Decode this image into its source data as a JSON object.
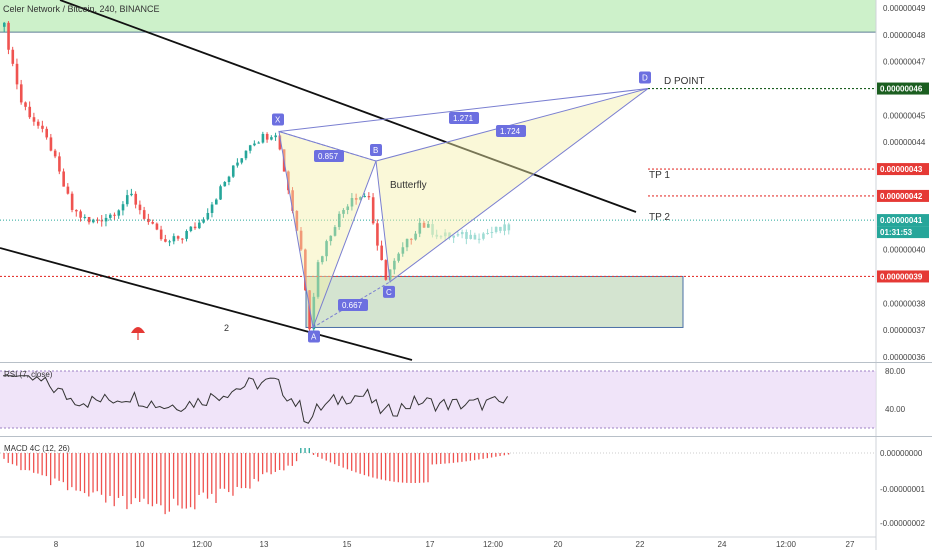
{
  "header": {
    "title": "Celer Network / Bitcoin, 240, BINANCE"
  },
  "chart_data": {
    "type": "candlestick",
    "symbol": "Celer Network / Bitcoin",
    "interval": "240",
    "exchange": "BINANCE",
    "price_axis": {
      "ticks": [
        "0.00000049",
        "0.00000048",
        "0.00000047",
        "0.00000046",
        "0.00000045",
        "0.00000044",
        "0.00000043",
        "0.00000042",
        "0.00000041",
        "0.00000040",
        "0.00000039",
        "0.00000038",
        "0.00000037",
        "0.00000036"
      ],
      "range": [
        3.59e-07,
        4.95e-07
      ]
    },
    "time_axis": {
      "ticks": [
        "8",
        "10",
        "12:00",
        "13",
        "15",
        "17",
        "12:00",
        "20",
        "22",
        "24",
        "12:00",
        "27"
      ]
    },
    "price_badges": [
      {
        "label": "0.00000046",
        "color": "#1b5e20"
      },
      {
        "label": "0.00000043",
        "color": "#e53935"
      },
      {
        "label": "0.00000042",
        "color": "#e53935"
      },
      {
        "label": "0.00000041",
        "color": "#26a69a"
      },
      {
        "label": "01:31:53",
        "color": "#26a69a"
      },
      {
        "label": "0.00000039",
        "color": "#e53935"
      }
    ],
    "pattern": {
      "name": "Butterfly",
      "points": [
        {
          "label": "X",
          "price": 4.44e-07
        },
        {
          "label": "A",
          "price": 3.71e-07
        },
        {
          "label": "B",
          "price": 4.33e-07
        },
        {
          "label": "C",
          "price": 3.88e-07
        },
        {
          "label": "D",
          "price": 4.6e-07
        }
      ],
      "ratios": [
        "0.857",
        "0.667",
        "1.271",
        "1.724"
      ]
    },
    "annotations": {
      "d_point": "D POINT",
      "tp1": "TP 1",
      "tp2": "TP 2",
      "wave": "2"
    },
    "rsi": {
      "label": "RSI (7, close)",
      "ticks": [
        "80.00",
        "40.00"
      ]
    },
    "macd": {
      "label": "MACD 4C (12, 26)",
      "ticks": [
        "0.00000000",
        "-0.00000001",
        "-0.00000002"
      ]
    }
  }
}
